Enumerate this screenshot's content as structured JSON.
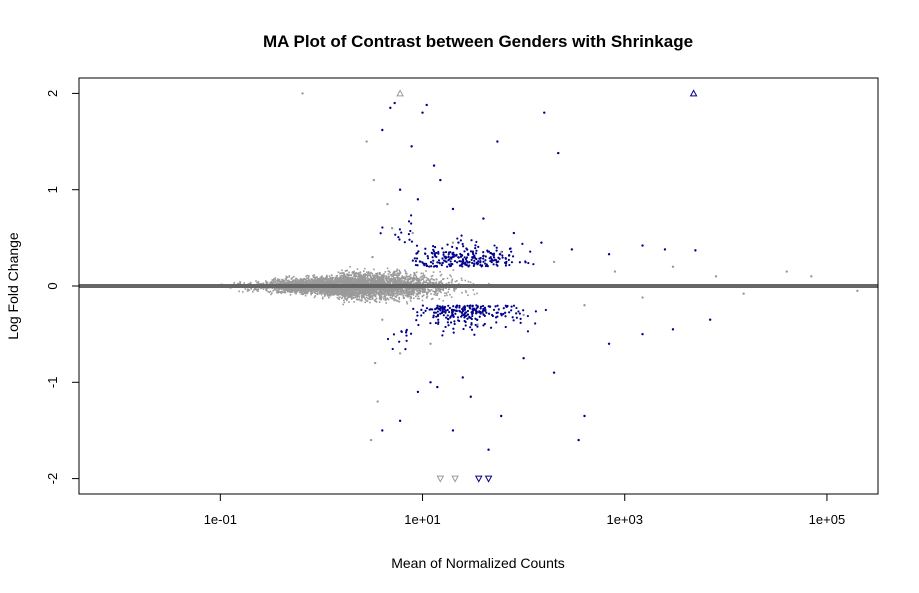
{
  "chart_data": {
    "type": "scatter",
    "title": "MA Plot of Contrast between Genders with Shrinkage",
    "xlabel": "Mean of Normalized Counts",
    "ylabel": "Log Fold Change",
    "x_scale": "log10",
    "xlim": [
      0.004,
      320000
    ],
    "ylim": [
      -2.16,
      2.16
    ],
    "x_ticks": [
      {
        "value": 0.1,
        "label": "1e-01"
      },
      {
        "value": 10,
        "label": "1e+01"
      },
      {
        "value": 1000,
        "label": "1e+03"
      },
      {
        "value": 100000,
        "label": "1e+05"
      }
    ],
    "y_ticks": [
      {
        "value": -2,
        "label": "-2"
      },
      {
        "value": -1,
        "label": "-1"
      },
      {
        "value": 0,
        "label": "0"
      },
      {
        "value": 1,
        "label": "1"
      },
      {
        "value": 2,
        "label": "2"
      }
    ],
    "reference_line": {
      "y": 0,
      "color": "#666666"
    },
    "grid": false,
    "legend": "none",
    "series": [
      {
        "category": "not significant",
        "color": "#9a9a9a",
        "marker": "point",
        "values": [
          [
            0.65,
            2.0
          ],
          [
            0.006,
            0.0
          ],
          [
            0.01,
            -0.005
          ],
          [
            0.02,
            0.005
          ],
          [
            0.05,
            0.01
          ],
          [
            0.08,
            -0.01
          ],
          [
            0.15,
            0.02
          ],
          [
            0.22,
            -0.03
          ],
          [
            0.35,
            0.04
          ],
          [
            0.5,
            -0.05
          ],
          [
            0.8,
            0.07
          ],
          [
            1.2,
            -0.09
          ],
          [
            1.8,
            0.12
          ],
          [
            2.5,
            -0.15
          ],
          [
            3.2,
            0.3
          ],
          [
            4.0,
            -0.35
          ],
          [
            5.0,
            0.6
          ],
          [
            2.8,
            1.5
          ],
          [
            3.3,
            1.1
          ],
          [
            3.6,
            -1.2
          ],
          [
            3.1,
            -1.6
          ],
          [
            3.4,
            -0.8
          ],
          [
            4.5,
            0.85
          ],
          [
            6.0,
            -0.7
          ],
          [
            8.0,
            0.55
          ],
          [
            12.0,
            -0.6
          ],
          [
            20.0,
            0.45
          ],
          [
            35.0,
            -0.4
          ],
          [
            60.0,
            0.35
          ],
          [
            100.0,
            -0.3
          ],
          [
            200.0,
            0.25
          ],
          [
            400.0,
            -0.2
          ],
          [
            800.0,
            0.15
          ],
          [
            1500.0,
            -0.12
          ],
          [
            3000.0,
            0.2
          ],
          [
            8000.0,
            0.1
          ],
          [
            15000.0,
            -0.08
          ],
          [
            40000.0,
            0.15
          ],
          [
            70000.0,
            0.1
          ],
          [
            200000.0,
            -0.05
          ]
        ]
      },
      {
        "category": "significant",
        "color": "#00008b",
        "marker": "point",
        "values": [
          [
            4.0,
            1.62
          ],
          [
            4.8,
            1.85
          ],
          [
            5.3,
            1.9
          ],
          [
            7.8,
            1.45
          ],
          [
            10.0,
            1.8
          ],
          [
            11.0,
            1.88
          ],
          [
            13.0,
            1.25
          ],
          [
            15.0,
            1.1
          ],
          [
            55.0,
            1.5
          ],
          [
            160.0,
            1.8
          ],
          [
            220.0,
            1.38
          ],
          [
            6.0,
            1.0
          ],
          [
            9.0,
            0.9
          ],
          [
            20.0,
            0.8
          ],
          [
            40.0,
            0.7
          ],
          [
            80.0,
            0.55
          ],
          [
            150.0,
            0.45
          ],
          [
            300.0,
            0.38
          ],
          [
            700.0,
            0.33
          ],
          [
            1500.0,
            0.42
          ],
          [
            2500.0,
            0.38
          ],
          [
            5000.0,
            0.37
          ],
          [
            4.0,
            -1.5
          ],
          [
            6.0,
            -1.4
          ],
          [
            9.0,
            -1.1
          ],
          [
            12.0,
            -1.0
          ],
          [
            20.0,
            -1.5
          ],
          [
            30.0,
            -1.15
          ],
          [
            60.0,
            -1.35
          ],
          [
            100.0,
            -0.75
          ],
          [
            200.0,
            -0.9
          ],
          [
            400.0,
            -1.35
          ],
          [
            700.0,
            -0.6
          ],
          [
            1500.0,
            -0.5
          ],
          [
            3000.0,
            -0.45
          ],
          [
            7000.0,
            -0.35
          ],
          [
            350.0,
            -1.6
          ],
          [
            45.0,
            -1.7
          ],
          [
            14.0,
            -1.05
          ],
          [
            25.0,
            -0.95
          ]
        ]
      },
      {
        "category": "outside range (clipped)",
        "color": "#9a9a9a",
        "marker": "triangle",
        "values": [
          [
            6.0,
            2.0
          ],
          [
            15.0,
            -2.0
          ],
          [
            21.0,
            -2.0
          ]
        ]
      },
      {
        "category": "outside range significant (clipped)",
        "color": "#00008b",
        "marker": "triangle",
        "values": [
          [
            4800.0,
            2.0
          ],
          [
            36.0,
            -2.0
          ],
          [
            45.0,
            -2.0
          ]
        ]
      }
    ]
  }
}
